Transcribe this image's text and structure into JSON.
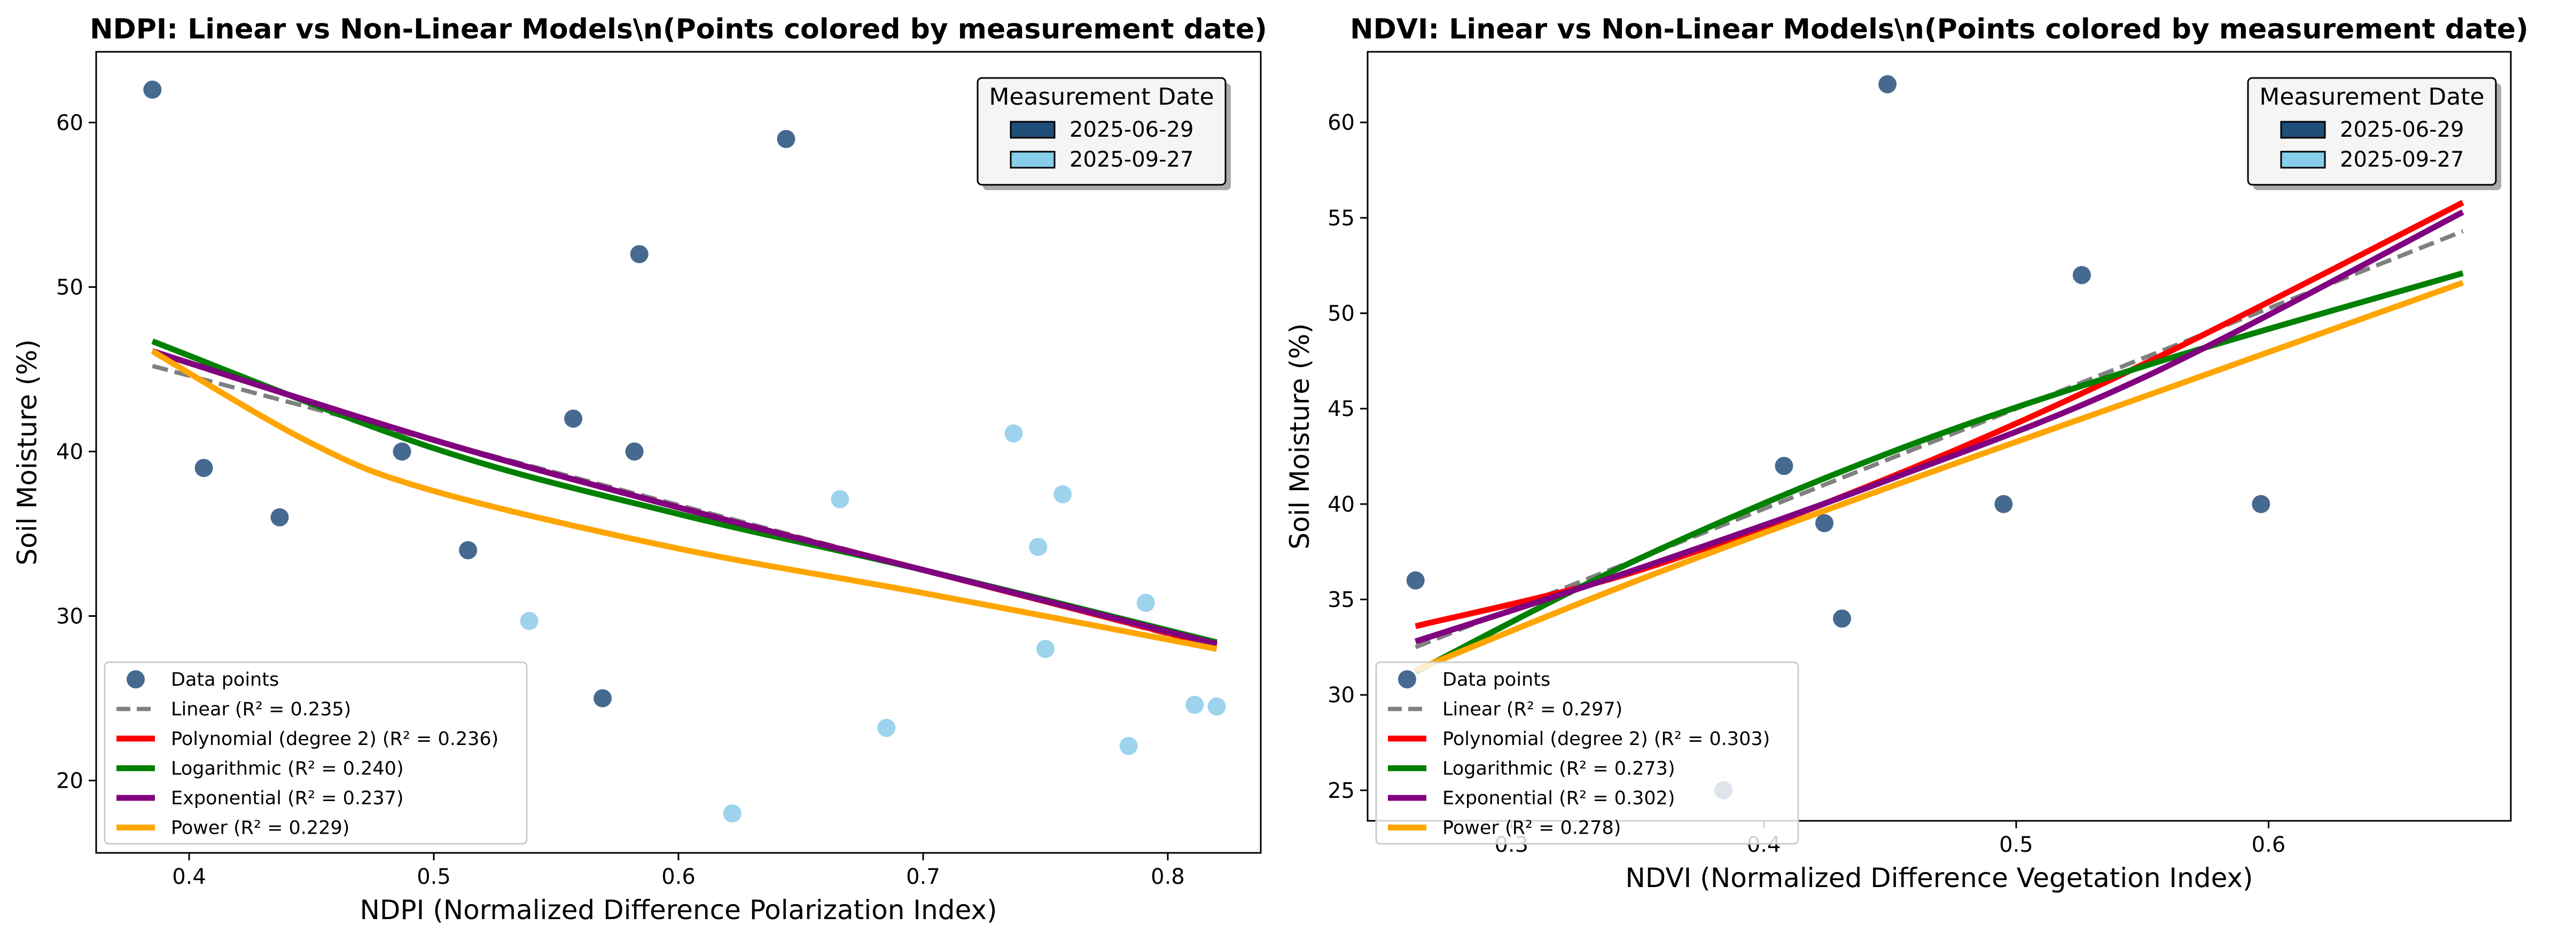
{
  "chart_data": [
    {
      "type": "scatter",
      "title": "NDPI: Linear vs Non-Linear Models\\n(Points colored by measurement date)",
      "xlabel": "NDPI (Normalized Difference Polarization Index)",
      "ylabel": "Soil Moisture (%)",
      "xlim": [
        0.362,
        0.838
      ],
      "ylim": [
        15.6,
        64.3
      ],
      "xticks": [
        0.4,
        0.5,
        0.6,
        0.7,
        0.8
      ],
      "xtick_labels": [
        "0.4",
        "0.5",
        "0.6",
        "0.7",
        "0.8"
      ],
      "yticks": [
        20,
        30,
        40,
        50,
        60
      ],
      "ytick_labels": [
        "20",
        "30",
        "40",
        "50",
        "60"
      ],
      "grid": false,
      "date_legend": {
        "title": "Measurement Date",
        "placement": "top-right",
        "entries": [
          {
            "label": "2025-06-29",
            "color": "#1f4e79"
          },
          {
            "label": "2025-09-27",
            "color": "#87ceeb"
          }
        ]
      },
      "model_legend": {
        "placement": "bottom-left",
        "entries": [
          {
            "label": "Data points",
            "kind": "marker",
            "color": "#46698f"
          },
          {
            "label": "Linear (R² = 0.235)",
            "kind": "dashed",
            "color": "#808080"
          },
          {
            "label": "Polynomial (degree 2) (R² = 0.236)",
            "kind": "line",
            "color": "#ff0000"
          },
          {
            "label": "Logarithmic (R² = 0.240)",
            "kind": "line",
            "color": "#008000"
          },
          {
            "label": "Exponential (R² = 0.237)",
            "kind": "line",
            "color": "#800080"
          },
          {
            "label": "Power (R² = 0.229)",
            "kind": "line",
            "color": "#ffa500"
          }
        ]
      },
      "points": [
        {
          "x": 0.385,
          "y": 62,
          "date": "2025-06-29"
        },
        {
          "x": 0.406,
          "y": 39,
          "date": "2025-06-29"
        },
        {
          "x": 0.437,
          "y": 36,
          "date": "2025-06-29"
        },
        {
          "x": 0.487,
          "y": 40,
          "date": "2025-06-29"
        },
        {
          "x": 0.514,
          "y": 34,
          "date": "2025-06-29"
        },
        {
          "x": 0.557,
          "y": 42,
          "date": "2025-06-29"
        },
        {
          "x": 0.569,
          "y": 25,
          "date": "2025-06-29"
        },
        {
          "x": 0.582,
          "y": 40,
          "date": "2025-06-29"
        },
        {
          "x": 0.584,
          "y": 52,
          "date": "2025-06-29"
        },
        {
          "x": 0.644,
          "y": 59,
          "date": "2025-06-29"
        },
        {
          "x": 0.539,
          "y": 29.7,
          "date": "2025-09-27"
        },
        {
          "x": 0.622,
          "y": 18,
          "date": "2025-09-27"
        },
        {
          "x": 0.666,
          "y": 37.1,
          "date": "2025-09-27"
        },
        {
          "x": 0.685,
          "y": 23.2,
          "date": "2025-09-27"
        },
        {
          "x": 0.737,
          "y": 41.1,
          "date": "2025-09-27"
        },
        {
          "x": 0.747,
          "y": 34.2,
          "date": "2025-09-27"
        },
        {
          "x": 0.75,
          "y": 28,
          "date": "2025-09-27"
        },
        {
          "x": 0.757,
          "y": 37.4,
          "date": "2025-09-27"
        },
        {
          "x": 0.784,
          "y": 22.1,
          "date": "2025-09-27"
        },
        {
          "x": 0.791,
          "y": 30.8,
          "date": "2025-09-27"
        },
        {
          "x": 0.811,
          "y": 24.6,
          "date": "2025-09-27"
        },
        {
          "x": 0.82,
          "y": 24.5,
          "date": "2025-09-27"
        }
      ],
      "series": [
        {
          "color": "#808080",
          "dashed": true,
          "x": [
            0.385,
            0.82
          ],
          "y": [
            45.2,
            28.1
          ]
        },
        {
          "color": "#ff0000",
          "dashed": false,
          "x": [
            0.385,
            0.5,
            0.6,
            0.7,
            0.82
          ],
          "y": [
            46.1,
            40.7,
            36.6,
            32.8,
            28.2
          ]
        },
        {
          "color": "#008000",
          "dashed": false,
          "x": [
            0.385,
            0.5,
            0.6,
            0.7,
            0.82
          ],
          "y": [
            46.7,
            40.2,
            36.2,
            32.8,
            28.4
          ]
        },
        {
          "color": "#800080",
          "dashed": false,
          "x": [
            0.385,
            0.5,
            0.6,
            0.7,
            0.82
          ],
          "y": [
            46.1,
            40.7,
            36.6,
            32.8,
            28.3
          ]
        },
        {
          "color": "#ffa500",
          "dashed": false,
          "x": [
            0.385,
            0.45,
            0.5,
            0.6,
            0.7,
            0.82
          ],
          "y": [
            46.1,
            40.5,
            37.6,
            34.1,
            31.4,
            28.0
          ]
        }
      ]
    },
    {
      "type": "scatter",
      "title": "NDVI: Linear vs Non-Linear Models\\n(Points colored by measurement date)",
      "xlabel": "NDVI (Normalized Difference Vegetation Index)",
      "ylabel": "Soil Moisture (%)",
      "xlim": [
        0.243,
        0.696
      ],
      "ylim": [
        23.4,
        63.7
      ],
      "xticks": [
        0.3,
        0.4,
        0.5,
        0.6
      ],
      "xtick_labels": [
        "0.3",
        "0.4",
        "0.5",
        "0.6"
      ],
      "yticks": [
        25,
        30,
        35,
        40,
        45,
        50,
        55,
        60
      ],
      "ytick_labels": [
        "25",
        "30",
        "35",
        "40",
        "45",
        "50",
        "55",
        "60"
      ],
      "grid": false,
      "date_legend": {
        "title": "Measurement Date",
        "placement": "top-right",
        "entries": [
          {
            "label": "2025-06-29",
            "color": "#1f4e79"
          },
          {
            "label": "2025-09-27",
            "color": "#87ceeb"
          }
        ]
      },
      "model_legend": {
        "placement": "bottom-left",
        "entries": [
          {
            "label": "Data points",
            "kind": "marker",
            "color": "#46698f"
          },
          {
            "label": "Linear (R² = 0.297)",
            "kind": "dashed",
            "color": "#808080"
          },
          {
            "label": "Polynomial (degree 2) (R² = 0.303)",
            "kind": "line",
            "color": "#ff0000"
          },
          {
            "label": "Logarithmic (R² = 0.273)",
            "kind": "line",
            "color": "#008000"
          },
          {
            "label": "Exponential (R² = 0.302)",
            "kind": "line",
            "color": "#800080"
          },
          {
            "label": "Power (R² = 0.278)",
            "kind": "line",
            "color": "#ffa500"
          }
        ]
      },
      "points": [
        {
          "x": 0.262,
          "y": 36,
          "date": "2025-06-29"
        },
        {
          "x": 0.384,
          "y": 25,
          "date": "2025-06-29"
        },
        {
          "x": 0.408,
          "y": 42,
          "date": "2025-06-29"
        },
        {
          "x": 0.424,
          "y": 39,
          "date": "2025-06-29"
        },
        {
          "x": 0.431,
          "y": 34,
          "date": "2025-06-29"
        },
        {
          "x": 0.449,
          "y": 62,
          "date": "2025-06-29"
        },
        {
          "x": 0.495,
          "y": 40,
          "date": "2025-06-29"
        },
        {
          "x": 0.526,
          "y": 52,
          "date": "2025-06-29"
        },
        {
          "x": 0.597,
          "y": 40,
          "date": "2025-06-29"
        },
        {
          "x": 0.677,
          "y": 59,
          "date": "2025-06-29"
        }
      ],
      "series": [
        {
          "color": "#808080",
          "dashed": true,
          "x": [
            0.262,
            0.677
          ],
          "y": [
            32.5,
            54.3
          ]
        },
        {
          "color": "#ff0000",
          "dashed": false,
          "x": [
            0.262,
            0.35,
            0.45,
            0.55,
            0.677
          ],
          "y": [
            33.6,
            36.5,
            41.4,
            47.3,
            55.8
          ]
        },
        {
          "color": "#008000",
          "dashed": false,
          "x": [
            0.262,
            0.35,
            0.45,
            0.55,
            0.677
          ],
          "y": [
            31.2,
            37.1,
            42.7,
            47.2,
            52.1
          ]
        },
        {
          "color": "#800080",
          "dashed": false,
          "x": [
            0.262,
            0.35,
            0.45,
            0.55,
            0.677
          ],
          "y": [
            32.8,
            36.6,
            41.3,
            46.6,
            55.3
          ]
        },
        {
          "color": "#ffa500",
          "dashed": false,
          "x": [
            0.262,
            0.35,
            0.45,
            0.55,
            0.677
          ],
          "y": [
            31.3,
            36.0,
            40.9,
            45.6,
            51.6
          ]
        }
      ]
    }
  ]
}
